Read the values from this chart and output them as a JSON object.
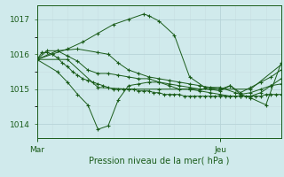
{
  "bg_color": "#d0eaec",
  "grid_color_major": "#b8d4d8",
  "grid_color_minor": "#c8dfe2",
  "line_color": "#1a5c1a",
  "title": "Pression niveau de la mer( hPa )",
  "ylabel_ticks": [
    1014,
    1015,
    1016,
    1017
  ],
  "xlim": [
    0,
    48
  ],
  "ylim": [
    1013.6,
    1017.4
  ],
  "x_ticks": [
    0,
    36
  ],
  "x_labels": [
    "Mar",
    "Jeu"
  ],
  "series": [
    [
      0.0,
      1015.85,
      1.0,
      1016.05,
      2.0,
      1016.05,
      3.0,
      1016.0,
      4.0,
      1015.9,
      5.0,
      1015.75,
      6.0,
      1015.65,
      7.0,
      1015.5,
      8.0,
      1015.4,
      9.0,
      1015.3,
      10.0,
      1015.25,
      11.0,
      1015.2,
      12.0,
      1015.15,
      13.0,
      1015.1,
      14.0,
      1015.05,
      15.0,
      1015.0,
      16.0,
      1015.0,
      17.0,
      1015.0,
      18.0,
      1015.0,
      19.0,
      1015.0,
      20.0,
      1014.95,
      21.0,
      1014.95,
      22.0,
      1014.95,
      23.0,
      1014.9,
      24.0,
      1014.9,
      25.0,
      1014.85,
      26.0,
      1014.85,
      27.0,
      1014.85,
      28.0,
      1014.85,
      29.0,
      1014.8,
      30.0,
      1014.8,
      31.0,
      1014.8,
      32.0,
      1014.8,
      33.0,
      1014.8,
      34.0,
      1014.8,
      35.0,
      1014.8,
      36.0,
      1014.8,
      37.0,
      1014.8,
      38.0,
      1014.8,
      39.0,
      1014.8,
      40.0,
      1014.8,
      41.0,
      1014.8,
      42.0,
      1014.8,
      43.0,
      1014.8,
      44.0,
      1014.8,
      45.0,
      1014.85,
      46.0,
      1014.85,
      47.0,
      1014.85,
      48.0,
      1014.85
    ],
    [
      0.0,
      1015.85,
      2.0,
      1016.1,
      4.0,
      1016.1,
      6.0,
      1015.95,
      8.0,
      1015.8,
      10.0,
      1015.55,
      12.0,
      1015.45,
      14.0,
      1015.45,
      16.0,
      1015.4,
      18.0,
      1015.35,
      20.0,
      1015.3,
      22.0,
      1015.3,
      24.0,
      1015.2,
      26.0,
      1015.15,
      28.0,
      1015.1,
      30.0,
      1015.05,
      32.0,
      1015.0,
      34.0,
      1015.0,
      36.0,
      1014.95,
      38.0,
      1015.1,
      40.0,
      1014.85,
      42.0,
      1014.9,
      44.0,
      1015.0,
      46.0,
      1015.1,
      48.0,
      1015.15
    ],
    [
      0.0,
      1015.85,
      3.0,
      1016.0,
      6.0,
      1016.15,
      9.0,
      1016.35,
      12.0,
      1016.6,
      15.0,
      1016.85,
      18.0,
      1017.0,
      21.0,
      1017.15,
      22.0,
      1017.1,
      24.0,
      1016.95,
      27.0,
      1016.55,
      30.0,
      1015.35,
      33.0,
      1015.05,
      36.0,
      1015.05,
      39.0,
      1014.9,
      42.0,
      1014.75,
      45.0,
      1014.55,
      48.0,
      1015.75
    ],
    [
      0.0,
      1015.85,
      4.0,
      1016.1,
      8.0,
      1016.15,
      12.0,
      1016.05,
      14.0,
      1016.0,
      16.0,
      1015.75,
      18.0,
      1015.55,
      20.0,
      1015.45,
      22.0,
      1015.35,
      24.0,
      1015.3,
      26.0,
      1015.25,
      28.0,
      1015.2,
      30.0,
      1015.15,
      32.0,
      1015.1,
      34.0,
      1015.05,
      36.0,
      1015.0,
      38.0,
      1015.1,
      40.0,
      1014.9,
      42.0,
      1015.05,
      44.0,
      1015.2,
      46.0,
      1015.35,
      48.0,
      1015.55
    ],
    [
      0.0,
      1015.85,
      4.0,
      1015.5,
      6.0,
      1015.2,
      8.0,
      1014.85,
      10.0,
      1014.55,
      12.0,
      1013.85,
      14.0,
      1013.95,
      16.0,
      1014.7,
      18.0,
      1015.1,
      20.0,
      1015.15,
      22.0,
      1015.2,
      24.0,
      1015.2,
      26.0,
      1015.1,
      28.0,
      1015.0,
      30.0,
      1015.0,
      32.0,
      1014.95,
      34.0,
      1014.9,
      36.0,
      1014.85,
      38.0,
      1014.8,
      40.0,
      1014.8,
      42.0,
      1014.8,
      44.0,
      1014.9,
      46.0,
      1015.1,
      48.0,
      1015.3
    ],
    [
      0.0,
      1015.85,
      6.0,
      1015.85,
      12.0,
      1015.05,
      18.0,
      1015.0,
      24.0,
      1015.0,
      30.0,
      1015.0,
      36.0,
      1015.0,
      42.0,
      1015.0,
      48.0,
      1015.7
    ]
  ]
}
